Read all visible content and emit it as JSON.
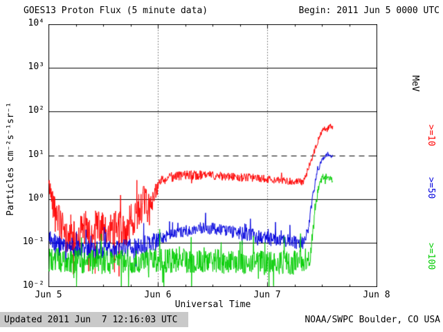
{
  "header": {
    "title": "GOES13 Proton Flux (5 minute data)",
    "begin": "Begin: 2011 Jun 5 0000 UTC"
  },
  "footer": {
    "updated": "Updated 2011 Jun  7 12:16:03 UTC",
    "credit": "NOAA/SWPC Boulder, CO USA"
  },
  "axes": {
    "ylabel": "Particles cm⁻²s⁻¹sr⁻¹",
    "xlabel": "Universal Time",
    "x_ticks": [
      "Jun 5",
      "Jun 6",
      "Jun 7",
      "Jun 8"
    ],
    "y_ticks": [
      "10⁴",
      "10³",
      "10²",
      "10¹",
      "10⁰",
      "10⁻¹",
      "10⁻²"
    ],
    "right_unit": "MeV",
    "right_labels": [
      {
        "text": ">=10"
      },
      {
        "text": ">=50"
      },
      {
        "text": ">=100"
      }
    ]
  },
  "chart_data": {
    "type": "line",
    "title": "GOES13 Proton Flux (5 minute data)",
    "xlabel": "Universal Time",
    "ylabel": "Particles cm⁻²s⁻¹sr⁻¹",
    "x_start": "2011 Jun 5 0000 UTC",
    "x_range_days": 3,
    "y_scale": "log",
    "y_min": 0.01,
    "y_max": 10000,
    "threshold": 10,
    "grid": {
      "h_solid_exp": [
        3,
        2,
        0,
        -1
      ],
      "v_dotted_days": [
        1,
        2
      ]
    },
    "t_end": 2.6,
    "dt": 0.003472,
    "seed": 42,
    "series": [
      {
        "name": ">=10 MeV",
        "color": "#ff0000",
        "keypoints": [
          [
            0,
            2.1
          ],
          [
            0.04,
            0.9
          ],
          [
            0.09,
            0.35
          ],
          [
            0.15,
            0.13
          ],
          [
            0.25,
            0.12
          ],
          [
            0.32,
            0.25
          ],
          [
            0.38,
            0.12
          ],
          [
            0.45,
            0.3
          ],
          [
            0.52,
            0.14
          ],
          [
            0.6,
            0.25
          ],
          [
            0.68,
            0.17
          ],
          [
            0.75,
            0.3
          ],
          [
            0.82,
            0.6
          ],
          [
            0.88,
            0.9
          ],
          [
            0.92,
            0.55
          ],
          [
            0.97,
            1.5
          ],
          [
            1.02,
            2.6
          ],
          [
            1.1,
            3.2
          ],
          [
            1.3,
            3.6
          ],
          [
            1.5,
            3.5
          ],
          [
            1.7,
            3.2
          ],
          [
            1.9,
            3.1
          ],
          [
            2.05,
            2.8
          ],
          [
            2.2,
            2.6
          ],
          [
            2.33,
            2.5
          ],
          [
            2.36,
            4
          ],
          [
            2.4,
            8
          ],
          [
            2.44,
            15
          ],
          [
            2.48,
            30
          ],
          [
            2.52,
            45
          ],
          [
            2.54,
            38
          ],
          [
            2.57,
            50
          ],
          [
            2.6,
            42
          ]
        ],
        "noise_decades": [
          [
            0,
            0.2
          ],
          [
            0.1,
            0.4
          ],
          [
            0.5,
            0.45
          ],
          [
            0.9,
            0.4
          ],
          [
            1.0,
            0.12
          ],
          [
            1.5,
            0.1
          ],
          [
            2.0,
            0.09
          ],
          [
            2.33,
            0.08
          ],
          [
            2.4,
            0.07
          ],
          [
            2.6,
            0.05
          ]
        ]
      },
      {
        "name": ">=50 MeV",
        "color": "#0000dd",
        "keypoints": [
          [
            0,
            0.13
          ],
          [
            0.1,
            0.08
          ],
          [
            0.2,
            0.07
          ],
          [
            0.5,
            0.07
          ],
          [
            0.8,
            0.08
          ],
          [
            1.0,
            0.12
          ],
          [
            1.2,
            0.18
          ],
          [
            1.4,
            0.22
          ],
          [
            1.6,
            0.2
          ],
          [
            1.8,
            0.16
          ],
          [
            2.0,
            0.13
          ],
          [
            2.2,
            0.11
          ],
          [
            2.33,
            0.1
          ],
          [
            2.37,
            0.2
          ],
          [
            2.41,
            1
          ],
          [
            2.45,
            4
          ],
          [
            2.5,
            8
          ],
          [
            2.55,
            11
          ],
          [
            2.58,
            9.5
          ],
          [
            2.6,
            10
          ]
        ],
        "noise_decades": [
          [
            0,
            0.22
          ],
          [
            0.9,
            0.2
          ],
          [
            1.1,
            0.13
          ],
          [
            1.8,
            0.15
          ],
          [
            2.3,
            0.16
          ],
          [
            2.42,
            0.08
          ],
          [
            2.5,
            0.05
          ],
          [
            2.6,
            0.04
          ]
        ]
      },
      {
        "name": ">=100 MeV",
        "color": "#00cc00",
        "keypoints": [
          [
            0,
            0.042
          ],
          [
            0.5,
            0.036
          ],
          [
            1.0,
            0.04
          ],
          [
            1.5,
            0.038
          ],
          [
            2.0,
            0.035
          ],
          [
            2.3,
            0.036
          ],
          [
            2.39,
            0.05
          ],
          [
            2.43,
            0.4
          ],
          [
            2.46,
            1.6
          ],
          [
            2.5,
            3.2
          ],
          [
            2.54,
            3.3
          ],
          [
            2.57,
            3.0
          ],
          [
            2.6,
            2.7
          ]
        ],
        "noise_decades": [
          [
            0,
            0.28
          ],
          [
            2.3,
            0.28
          ],
          [
            2.4,
            0.2
          ],
          [
            2.46,
            0.08
          ],
          [
            2.6,
            0.06
          ]
        ]
      }
    ]
  }
}
